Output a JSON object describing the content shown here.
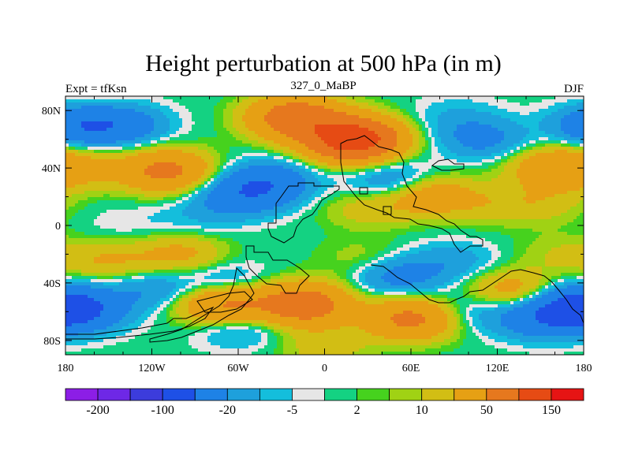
{
  "chart_data": {
    "type": "heatmap",
    "title": "Height perturbation at 500 hPa (in m)",
    "subtitle_left": "Expt = tfKsn",
    "subtitle_center": "327_0_MaBP",
    "subtitle_right": "DJF",
    "x_ticks": [
      "180",
      "120W",
      "60W",
      "0",
      "60E",
      "120E",
      "180"
    ],
    "y_ticks": [
      "80N",
      "40N",
      "0",
      "40S",
      "80S"
    ],
    "colorbar_labels": [
      "-200",
      "-100",
      "-20",
      "-5",
      "2",
      "10",
      "50",
      "150"
    ],
    "colorbar_colors": [
      "#8c1ee6",
      "#6e28e6",
      "#3c3cdc",
      "#1e50e6",
      "#1e82e6",
      "#1ea0dc",
      "#14bedc",
      "#e6e6e6",
      "#14d282",
      "#46d21e",
      "#a0d214",
      "#d2be14",
      "#e6a014",
      "#e6781e",
      "#e64b14",
      "#e61414"
    ],
    "x_range": [
      -180,
      180
    ],
    "y_range": [
      -90,
      90
    ],
    "blobs": [
      {
        "lon": 20,
        "lat": 60,
        "v": 140
      },
      {
        "lon": -20,
        "lat": 75,
        "v": 80
      },
      {
        "lon": -110,
        "lat": 38,
        "v": 60
      },
      {
        "lon": -170,
        "lat": 40,
        "v": 20
      },
      {
        "lon": -140,
        "lat": 70,
        "v": -30
      },
      {
        "lon": -170,
        "lat": 70,
        "v": -40
      },
      {
        "lon": 110,
        "lat": 60,
        "v": -25
      },
      {
        "lon": 90,
        "lat": 75,
        "v": -10
      },
      {
        "lon": 160,
        "lat": 40,
        "v": 40
      },
      {
        "lon": 150,
        "lat": 15,
        "v": 15
      },
      {
        "lon": -40,
        "lat": 30,
        "v": -40
      },
      {
        "lon": -60,
        "lat": 20,
        "v": -30
      },
      {
        "lon": 50,
        "lat": 30,
        "v": -30
      },
      {
        "lon": 70,
        "lat": 22,
        "v": 40
      },
      {
        "lon": 30,
        "lat": 12,
        "v": 15
      },
      {
        "lon": 110,
        "lat": 15,
        "v": 12
      },
      {
        "lon": -90,
        "lat": 5,
        "v": -8
      },
      {
        "lon": -140,
        "lat": 0,
        "v": -5
      },
      {
        "lon": -150,
        "lat": -25,
        "v": 20
      },
      {
        "lon": -100,
        "lat": -20,
        "v": 25
      },
      {
        "lon": 30,
        "lat": -25,
        "v": 12
      },
      {
        "lon": 50,
        "lat": -35,
        "v": -30
      },
      {
        "lon": 90,
        "lat": -25,
        "v": -15
      },
      {
        "lon": 165,
        "lat": -20,
        "v": 10
      },
      {
        "lon": 130,
        "lat": -45,
        "v": 30
      },
      {
        "lon": -120,
        "lat": -45,
        "v": -20
      },
      {
        "lon": -70,
        "lat": -40,
        "v": -20
      },
      {
        "lon": -70,
        "lat": -55,
        "v": 60
      },
      {
        "lon": -15,
        "lat": -55,
        "v": 80
      },
      {
        "lon": 60,
        "lat": -65,
        "v": 60
      },
      {
        "lon": -170,
        "lat": -60,
        "v": -40
      },
      {
        "lon": 150,
        "lat": -65,
        "v": -35
      },
      {
        "lon": 175,
        "lat": -55,
        "v": -45
      },
      {
        "lon": 100,
        "lat": -60,
        "v": -15
      },
      {
        "lon": -60,
        "lat": -70,
        "v": -20
      },
      {
        "lon": 0,
        "lat": -85,
        "v": 15
      },
      {
        "lon": -160,
        "lat": 85,
        "v": 5
      }
    ]
  }
}
